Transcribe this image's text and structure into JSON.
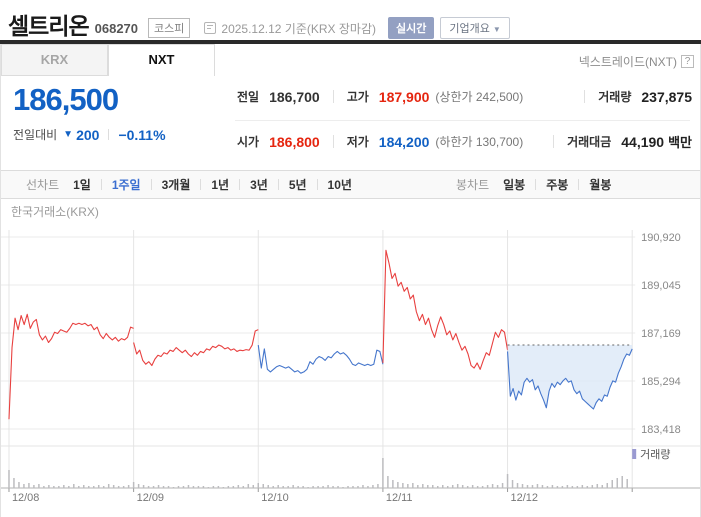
{
  "header": {
    "title": "셀트리온",
    "code": "068270",
    "market_badge": "코스피",
    "date_info": "2025.12.12 기준(KRX 장마감)",
    "realtime_button": "실시간",
    "company_overview_button": "기업개요"
  },
  "tabs": {
    "krx": "KRX",
    "nxt": "NXT",
    "active": "NXT",
    "right_label": "넥스트레이드(NXT)",
    "help_icon": "?"
  },
  "price": {
    "current": "186,500",
    "change_label": "전일대비",
    "change_direction": "down",
    "change_arrow": "▼",
    "change_value": "200",
    "change_percent": "−0.11%",
    "summary": {
      "prev_close": {
        "label": "전일",
        "value": "186,700"
      },
      "high": {
        "label": "고가",
        "value": "187,900",
        "extra": "(상한가 242,500)"
      },
      "volume": {
        "label": "거래량",
        "value": "237,875"
      },
      "open": {
        "label": "시가",
        "value": "186,800"
      },
      "low": {
        "label": "저가",
        "value": "184,200",
        "extra": "(하한가 130,700)"
      },
      "value_traded": {
        "label": "거래대금",
        "value": "44,190",
        "unit": "백만"
      }
    }
  },
  "toolbar": {
    "line_label": "선차트",
    "line_options": [
      "1일",
      "1주일",
      "3개월",
      "1년",
      "3년",
      "5년",
      "10년"
    ],
    "active_line_option": "1주일",
    "candle_label": "봉차트",
    "candle_options": [
      "일봉",
      "주봉",
      "월봉"
    ]
  },
  "colors": {
    "down_blue": "#1261c4",
    "up_red": "#e5250f"
  },
  "chart_data": {
    "type": "line",
    "exchange_label": "한국거래소(KRX)",
    "volume_legend": "거래량",
    "y_axis": {
      "tick_values": [
        190920,
        189045,
        187169,
        185294,
        183418
      ],
      "tick_labels": [
        "190,920",
        "189,045",
        "187,169",
        "185,294",
        "183,418"
      ]
    },
    "x_axis": {
      "labels": [
        "12/08",
        "12/09",
        "12/10",
        "12/11",
        "12/12"
      ]
    },
    "prev_close": 186700,
    "series": [
      {
        "name": "12/08",
        "color": "red",
        "values": [
          183800,
          186600,
          187750,
          187300,
          187850,
          187500,
          187900,
          187350,
          187600,
          187700,
          187100,
          186900,
          187050,
          186800,
          186950,
          187200,
          187150,
          187300,
          187250,
          187200,
          187350,
          187550,
          187500,
          187550,
          187500,
          187550,
          187450,
          187500,
          187300,
          187400,
          187100,
          186950,
          187150,
          187000,
          186900,
          187000,
          186850,
          186950,
          186900,
          187000,
          187400,
          187350
        ]
      },
      {
        "name": "12/09",
        "color": "red",
        "values": [
          186800,
          186350,
          186500,
          186100,
          185950,
          186050,
          185900,
          186150,
          186300,
          186250,
          186400,
          186350,
          186500,
          186450,
          186600,
          186500,
          186400,
          186500,
          186350,
          186250,
          186400,
          186300,
          186450,
          186400,
          186550,
          186500,
          186650,
          186600,
          186700,
          186650,
          186550,
          186600,
          186500,
          186550,
          186450,
          186500,
          186480,
          186520,
          186500,
          186700,
          187250,
          187300
        ]
      },
      {
        "name": "12/10",
        "color": "blue",
        "values": [
          186700,
          185800,
          186550,
          185750,
          185650,
          185750,
          185850,
          185900,
          185850,
          185800,
          185850,
          185750,
          185650,
          185700,
          185600,
          185650,
          185750,
          186050,
          185950,
          186150,
          186250,
          186200,
          186100,
          186250,
          186200,
          186350,
          186450,
          186350,
          186400,
          186300,
          186150,
          185950,
          185900,
          186000,
          185950,
          185900,
          185950,
          185900,
          185950,
          186500,
          186450,
          185950
        ]
      },
      {
        "name": "12/11",
        "color": "red",
        "values": [
          186000,
          190400,
          189900,
          189300,
          189500,
          189000,
          189150,
          188800,
          188950,
          188500,
          188650,
          188000,
          187650,
          187900,
          187500,
          187750,
          187300,
          187000,
          187450,
          187800,
          187500,
          187100,
          187250,
          186900,
          187150,
          186800,
          186500,
          186650,
          186350,
          185900,
          185800,
          186000,
          185750,
          186100,
          186400,
          186300,
          186750,
          187200,
          187000,
          187300,
          187200,
          186500
        ]
      },
      {
        "name": "12/12",
        "color": "blue",
        "fill_below_prev_close": true,
        "values": [
          186450,
          184700,
          185000,
          184550,
          184900,
          184750,
          185250,
          185400,
          185250,
          185350,
          184950,
          185100,
          184800,
          184550,
          184250,
          184900,
          185200,
          185050,
          185250,
          185150,
          185300,
          185400,
          185250,
          185300,
          184950,
          184800,
          184900,
          184600,
          184500,
          184400,
          184300,
          184200,
          184450,
          184600,
          184500,
          184750,
          184700,
          185050,
          185300,
          185250,
          185600,
          185850,
          186150,
          186350,
          186300,
          186550
        ]
      }
    ],
    "volume_bars": [
      18,
      10,
      6,
      4,
      5,
      3,
      4,
      2,
      3,
      2,
      2,
      3,
      2,
      4,
      2,
      3,
      2,
      2,
      3,
      2,
      4,
      3,
      2,
      2,
      3,
      6,
      4,
      3,
      2,
      2,
      3,
      2,
      2,
      1,
      2,
      2,
      3,
      2,
      2,
      2,
      1,
      2,
      2,
      1,
      2,
      2,
      3,
      2,
      4,
      3,
      5,
      4,
      3,
      2,
      3,
      2,
      2,
      3,
      2,
      2,
      1,
      2,
      2,
      2,
      3,
      2,
      2,
      1,
      2,
      2,
      2,
      3,
      2,
      3,
      4,
      30,
      12,
      8,
      6,
      5,
      4,
      5,
      3,
      4,
      3,
      3,
      2,
      3,
      2,
      3,
      4,
      3,
      2,
      3,
      2,
      2,
      3,
      4,
      3,
      5,
      14,
      8,
      5,
      4,
      3,
      3,
      4,
      3,
      2,
      3,
      2,
      2,
      3,
      2,
      2,
      3,
      2,
      3,
      4,
      3,
      5,
      8,
      10,
      12,
      9
    ],
    "colors": {
      "red": "#e8403f",
      "blue": "#4576cc",
      "area": "#dce9f8",
      "grid": "#ebebeb",
      "vgrid": "#e5e5e5",
      "axis": "#b3b3b3",
      "pane_divider": "#e4e4e4",
      "volume": "#bcbcbf",
      "legend_swatch": "#9a9ad1",
      "dotted": "#666666",
      "tick_label": "#898989"
    }
  }
}
